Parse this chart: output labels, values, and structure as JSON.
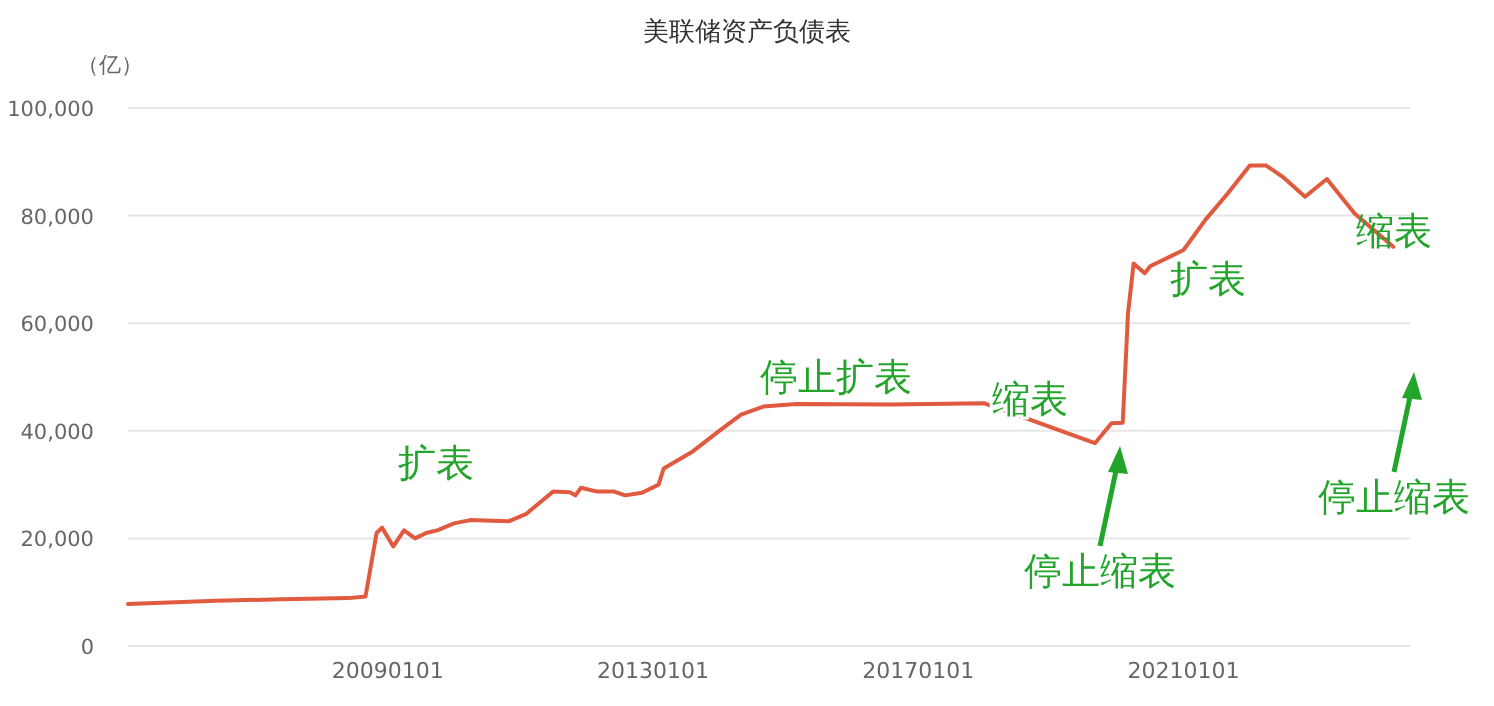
{
  "chart_data": {
    "type": "line",
    "title": "美联储资产负债表",
    "ylabel": "（亿）",
    "x": [
      "2005-02",
      "2006-06",
      "2007-06",
      "2008-06",
      "2008-09",
      "2008-10",
      "2008-11",
      "2008-12",
      "2009-02",
      "2009-04",
      "2009-06",
      "2009-08",
      "2009-10",
      "2010-01",
      "2010-04",
      "2010-08",
      "2010-11",
      "2011-02",
      "2011-05",
      "2011-07",
      "2011-10",
      "2011-11",
      "2011-12",
      "2012-03",
      "2012-06",
      "2012-08",
      "2012-11",
      "2013-02",
      "2013-03",
      "2013-08",
      "2014-01",
      "2014-05",
      "2014-09",
      "2015-03",
      "2016-08",
      "2018-01",
      "2019-09",
      "2019-12",
      "2020-02",
      "2020-03",
      "2020-04",
      "2020-06",
      "2020-07",
      "2021-01",
      "2021-05",
      "2021-09",
      "2022-01",
      "2022-04",
      "2022-07",
      "2022-11",
      "2023-03",
      "2023-08",
      "2024-03"
    ],
    "series": [
      {
        "color": "#e05a3f",
        "values": [
          7800,
          8400,
          8700,
          8900,
          9200,
          15000,
          21000,
          22000,
          18500,
          21500,
          20000,
          21000,
          21500,
          22800,
          23400,
          23300,
          23200,
          24500,
          27000,
          28700,
          28600,
          28000,
          29400,
          28700,
          28700,
          28000,
          28500,
          30000,
          33000,
          36000,
          40000,
          43000,
          44500,
          45000,
          44900,
          45100,
          37700,
          41400,
          41500,
          61800,
          71100,
          69300,
          70600,
          73600,
          79200,
          84100,
          89300,
          89300,
          87200,
          83500,
          86800,
          80400,
          74200
        ]
      }
    ],
    "xlim": [
      "2005-02",
      "2024-06"
    ],
    "xticks": [
      {
        "value": "2009-01-01",
        "label": "20090101"
      },
      {
        "value": "2013-01-01",
        "label": "20130101"
      },
      {
        "value": "2017-01-01",
        "label": "20170101"
      },
      {
        "value": "2021-01-01",
        "label": "20210101"
      }
    ],
    "ylim": [
      0,
      100000
    ],
    "yticks": [
      {
        "value": 0,
        "label": "0"
      },
      {
        "value": 20000,
        "label": "20,000"
      },
      {
        "value": 40000,
        "label": "40,000"
      },
      {
        "value": 60000,
        "label": "60,000"
      },
      {
        "value": 80000,
        "label": "80,000"
      },
      {
        "value": 100000,
        "label": "100,000"
      }
    ],
    "grid": "y",
    "marker": "none",
    "line_style": "solid",
    "annotations": [
      "扩表",
      "停止扩表",
      "缩表",
      "停止缩表",
      "扩表",
      "缩表",
      "停止缩表"
    ]
  }
}
